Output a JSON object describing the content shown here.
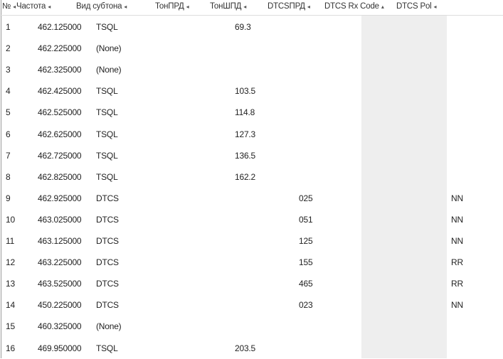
{
  "columns": [
    {
      "label": "№",
      "sort": "◂"
    },
    {
      "label": "Частота",
      "sort": "◂"
    },
    {
      "label": "Вид субтона",
      "sort": "◂"
    },
    {
      "label": "ТонПРД",
      "sort": "◂"
    },
    {
      "label": "ТонШПД",
      "sort": "◂"
    },
    {
      "label": "DTCSПРД",
      "sort": "◂"
    },
    {
      "label": "DTCS Rx Code",
      "sort": "▴"
    },
    {
      "label": "DTCS Pol",
      "sort": "◂"
    }
  ],
  "rows": [
    [
      "1",
      "462.125000",
      "TSQL",
      "",
      "69.3",
      "",
      "",
      ""
    ],
    [
      "2",
      "462.225000",
      "(None)",
      "",
      "",
      "",
      "",
      ""
    ],
    [
      "3",
      "462.325000",
      "(None)",
      "",
      "",
      "",
      "",
      ""
    ],
    [
      "4",
      "462.425000",
      "TSQL",
      "",
      "103.5",
      "",
      "",
      ""
    ],
    [
      "5",
      "462.525000",
      "TSQL",
      "",
      "114.8",
      "",
      "",
      ""
    ],
    [
      "6",
      "462.625000",
      "TSQL",
      "",
      "127.3",
      "",
      "",
      ""
    ],
    [
      "7",
      "462.725000",
      "TSQL",
      "",
      "136.5",
      "",
      "",
      ""
    ],
    [
      "8",
      "462.825000",
      "TSQL",
      "",
      "162.2",
      "",
      "",
      ""
    ],
    [
      "9",
      "462.925000",
      "DTCS",
      "",
      "",
      "025",
      "",
      "NN"
    ],
    [
      "10",
      "463.025000",
      "DTCS",
      "",
      "",
      "051",
      "",
      "NN"
    ],
    [
      "11",
      "463.125000",
      "DTCS",
      "",
      "",
      "125",
      "",
      "NN"
    ],
    [
      "12",
      "463.225000",
      "DTCS",
      "",
      "",
      "155",
      "",
      "RR"
    ],
    [
      "13",
      "463.525000",
      "DTCS",
      "",
      "",
      "465",
      "",
      "RR"
    ],
    [
      "14",
      "450.225000",
      "DTCS",
      "",
      "",
      "023",
      "",
      "NN"
    ],
    [
      "15",
      "460.325000",
      "(None)",
      "",
      "",
      "",
      "",
      ""
    ],
    [
      "16",
      "469.950000",
      "TSQL",
      "",
      "203.5",
      "",
      "",
      ""
    ]
  ]
}
